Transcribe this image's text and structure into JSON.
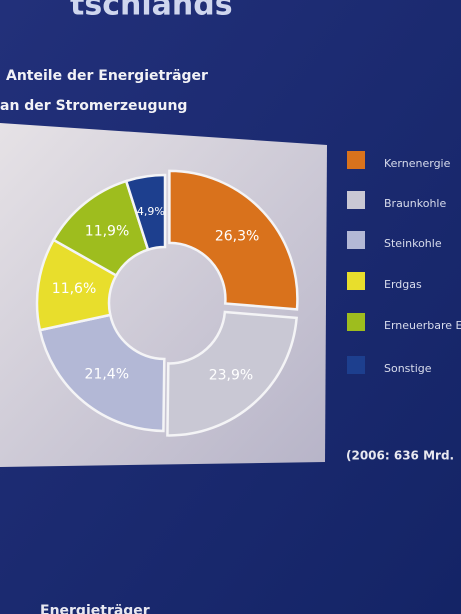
{
  "heading_fragment": "tschlands",
  "chart_data": {
    "type": "donut",
    "title_lines": [
      "Anteile der Energieträger",
      "an der Stromerzeugung"
    ],
    "categories": [
      "Kernenergie",
      "Braunkohle",
      "Steinkohle",
      "Erdgas",
      "Erneuerbare Er",
      "Sonstige"
    ],
    "values": [
      26.3,
      23.9,
      21.4,
      11.6,
      11.9,
      4.9
    ],
    "value_labels": [
      "26,3%",
      "23,9%",
      "21,4%",
      "11,6%",
      "11,9%",
      "4,9%"
    ],
    "colors": [
      "#d9721c",
      "#c9c8d4",
      "#b3b8d6",
      "#e8de2c",
      "#9ebd1e",
      "#1d3f8e"
    ],
    "footnote": "(2006: 636 Mrd."
  },
  "bottom_fragment": "Energieträger"
}
